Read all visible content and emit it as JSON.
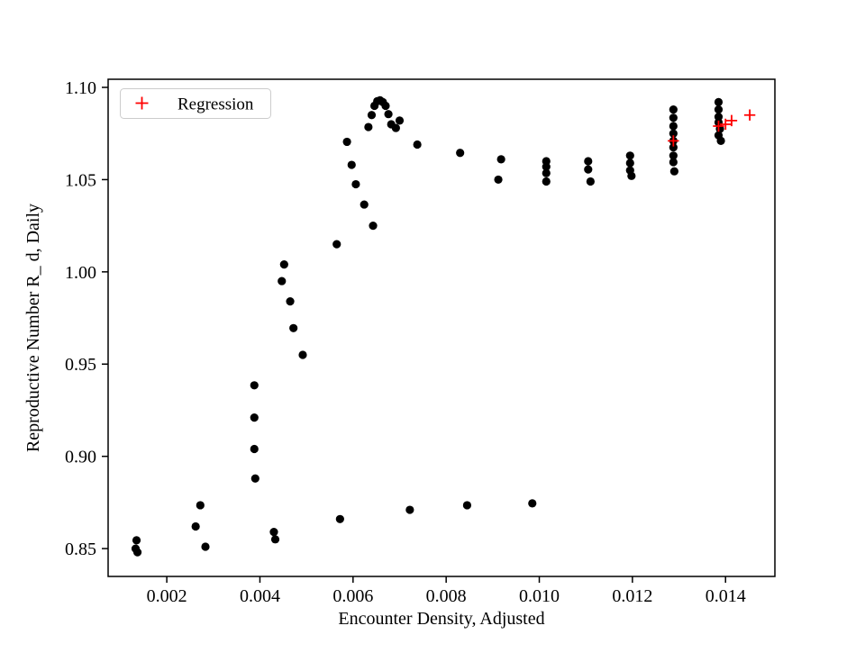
{
  "figure": {
    "background": "#ffffff",
    "axes_edge_color": "#000000"
  },
  "chart_data": {
    "type": "scatter",
    "title": "",
    "xlabel": "Encounter Density, Adjusted",
    "ylabel": "Reproductive Number R_ d, Daily",
    "xlim": [
      0.00074,
      0.01506
    ],
    "ylim": [
      0.8349,
      1.1044
    ],
    "grid": false,
    "x_ticks": [
      0.002,
      0.004,
      0.006,
      0.008,
      0.01,
      0.012,
      0.014
    ],
    "x_tick_labels": [
      "0.002",
      "0.004",
      "0.006",
      "0.008",
      "0.010",
      "0.012",
      "0.014"
    ],
    "y_ticks": [
      0.85,
      0.9,
      0.95,
      1.0,
      1.05,
      1.1
    ],
    "y_tick_labels": [
      "0.85",
      "0.90",
      "0.95",
      "1.00",
      "1.05",
      "1.10"
    ],
    "legend": {
      "position": "upper left",
      "entries": [
        {
          "label": "Regression",
          "marker": "plus",
          "color": "#ff0000"
        }
      ]
    },
    "series": [
      {
        "name": "data",
        "marker": "circle",
        "color": "#000000",
        "points": [
          [
            0.00135,
            0.8545
          ],
          [
            0.00133,
            0.85
          ],
          [
            0.00137,
            0.848
          ],
          [
            0.00272,
            0.8735
          ],
          [
            0.00262,
            0.862
          ],
          [
            0.00283,
            0.851
          ],
          [
            0.00388,
            0.9385
          ],
          [
            0.00388,
            0.921
          ],
          [
            0.00388,
            0.904
          ],
          [
            0.0039,
            0.888
          ],
          [
            0.0043,
            0.859
          ],
          [
            0.00433,
            0.855
          ],
          [
            0.00452,
            1.004
          ],
          [
            0.00447,
            0.995
          ],
          [
            0.00465,
            0.984
          ],
          [
            0.00472,
            0.9695
          ],
          [
            0.00492,
            0.955
          ],
          [
            0.00565,
            1.015
          ],
          [
            0.00572,
            0.866
          ],
          [
            0.00587,
            1.0705
          ],
          [
            0.00597,
            1.058
          ],
          [
            0.00606,
            1.0475
          ],
          [
            0.00624,
            1.0365
          ],
          [
            0.00643,
            1.025
          ],
          [
            0.00633,
            1.0785
          ],
          [
            0.0064,
            1.085
          ],
          [
            0.00646,
            1.09
          ],
          [
            0.00652,
            1.0925
          ],
          [
            0.00658,
            1.093
          ],
          [
            0.00664,
            1.092
          ],
          [
            0.0067,
            1.09
          ],
          [
            0.00676,
            1.0855
          ],
          [
            0.00682,
            1.08
          ],
          [
            0.00692,
            1.078
          ],
          [
            0.007,
            1.082
          ],
          [
            0.00738,
            1.069
          ],
          [
            0.00722,
            0.871
          ],
          [
            0.0083,
            1.0645
          ],
          [
            0.00845,
            0.8735
          ],
          [
            0.00918,
            1.061
          ],
          [
            0.00912,
            1.05
          ],
          [
            0.00985,
            0.8745
          ],
          [
            0.01015,
            1.06
          ],
          [
            0.01015,
            1.057
          ],
          [
            0.01015,
            1.0535
          ],
          [
            0.01015,
            1.049
          ],
          [
            0.01105,
            1.06
          ],
          [
            0.01105,
            1.0555
          ],
          [
            0.0111,
            1.049
          ],
          [
            0.01195,
            1.063
          ],
          [
            0.01195,
            1.059
          ],
          [
            0.01195,
            1.055
          ],
          [
            0.01198,
            1.052
          ],
          [
            0.01288,
            1.088
          ],
          [
            0.01288,
            1.0835
          ],
          [
            0.01288,
            1.079
          ],
          [
            0.01288,
            1.075
          ],
          [
            0.01288,
            1.071
          ],
          [
            0.01288,
            1.0675
          ],
          [
            0.01288,
            1.063
          ],
          [
            0.01288,
            1.0595
          ],
          [
            0.0129,
            1.0545
          ],
          [
            0.01385,
            1.092
          ],
          [
            0.01385,
            1.088
          ],
          [
            0.01385,
            1.084
          ],
          [
            0.01385,
            1.081
          ],
          [
            0.01388,
            1.0775
          ],
          [
            0.01385,
            1.074
          ],
          [
            0.0139,
            1.071
          ]
        ]
      },
      {
        "name": "Regression",
        "marker": "plus",
        "color": "#ff0000",
        "points": [
          [
            0.01288,
            1.071
          ],
          [
            0.01385,
            1.079
          ],
          [
            0.014,
            1.08
          ],
          [
            0.01413,
            1.082
          ],
          [
            0.01452,
            1.085
          ]
        ]
      }
    ]
  }
}
